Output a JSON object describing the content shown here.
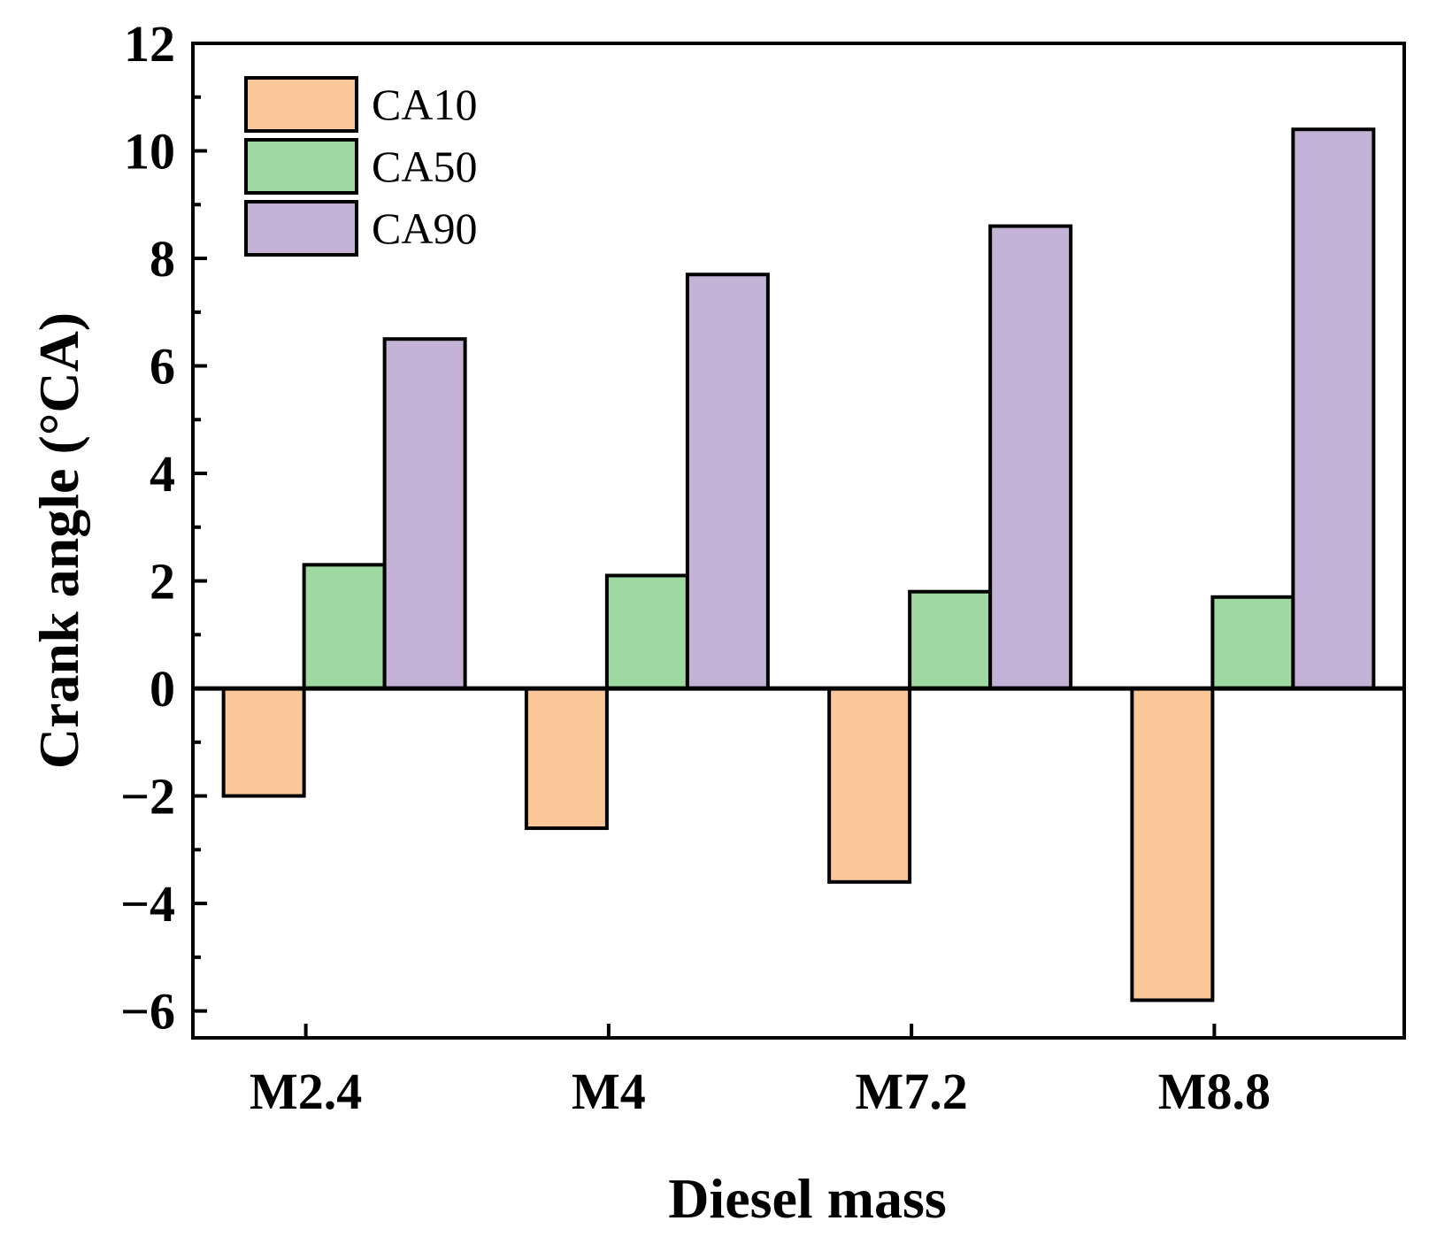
{
  "chart_data": {
    "type": "bar",
    "xlabel": "Diesel mass",
    "ylabel": "Crank angle (°CA)",
    "categories": [
      "M2.4",
      "M4",
      "M7.2",
      "M8.8"
    ],
    "series": [
      {
        "name": "CA10",
        "values": [
          -2.0,
          -2.6,
          -3.6,
          -5.8
        ],
        "color": "#fac898"
      },
      {
        "name": "CA50",
        "values": [
          2.3,
          2.1,
          1.8,
          1.7
        ],
        "color": "#9fd8a0"
      },
      {
        "name": "CA90",
        "values": [
          6.5,
          7.7,
          8.6,
          10.4
        ],
        "color": "#c3b1d6"
      }
    ],
    "ylim": [
      -6.5,
      12
    ],
    "yticks": [
      -6,
      -4,
      -2,
      0,
      2,
      4,
      6,
      8,
      10,
      12
    ],
    "ytick_labels": [
      "−6",
      "−4",
      "−2",
      "0",
      "2",
      "4",
      "6",
      "8",
      "10",
      "12"
    ],
    "legend_position": "top-left",
    "grid": false
  }
}
